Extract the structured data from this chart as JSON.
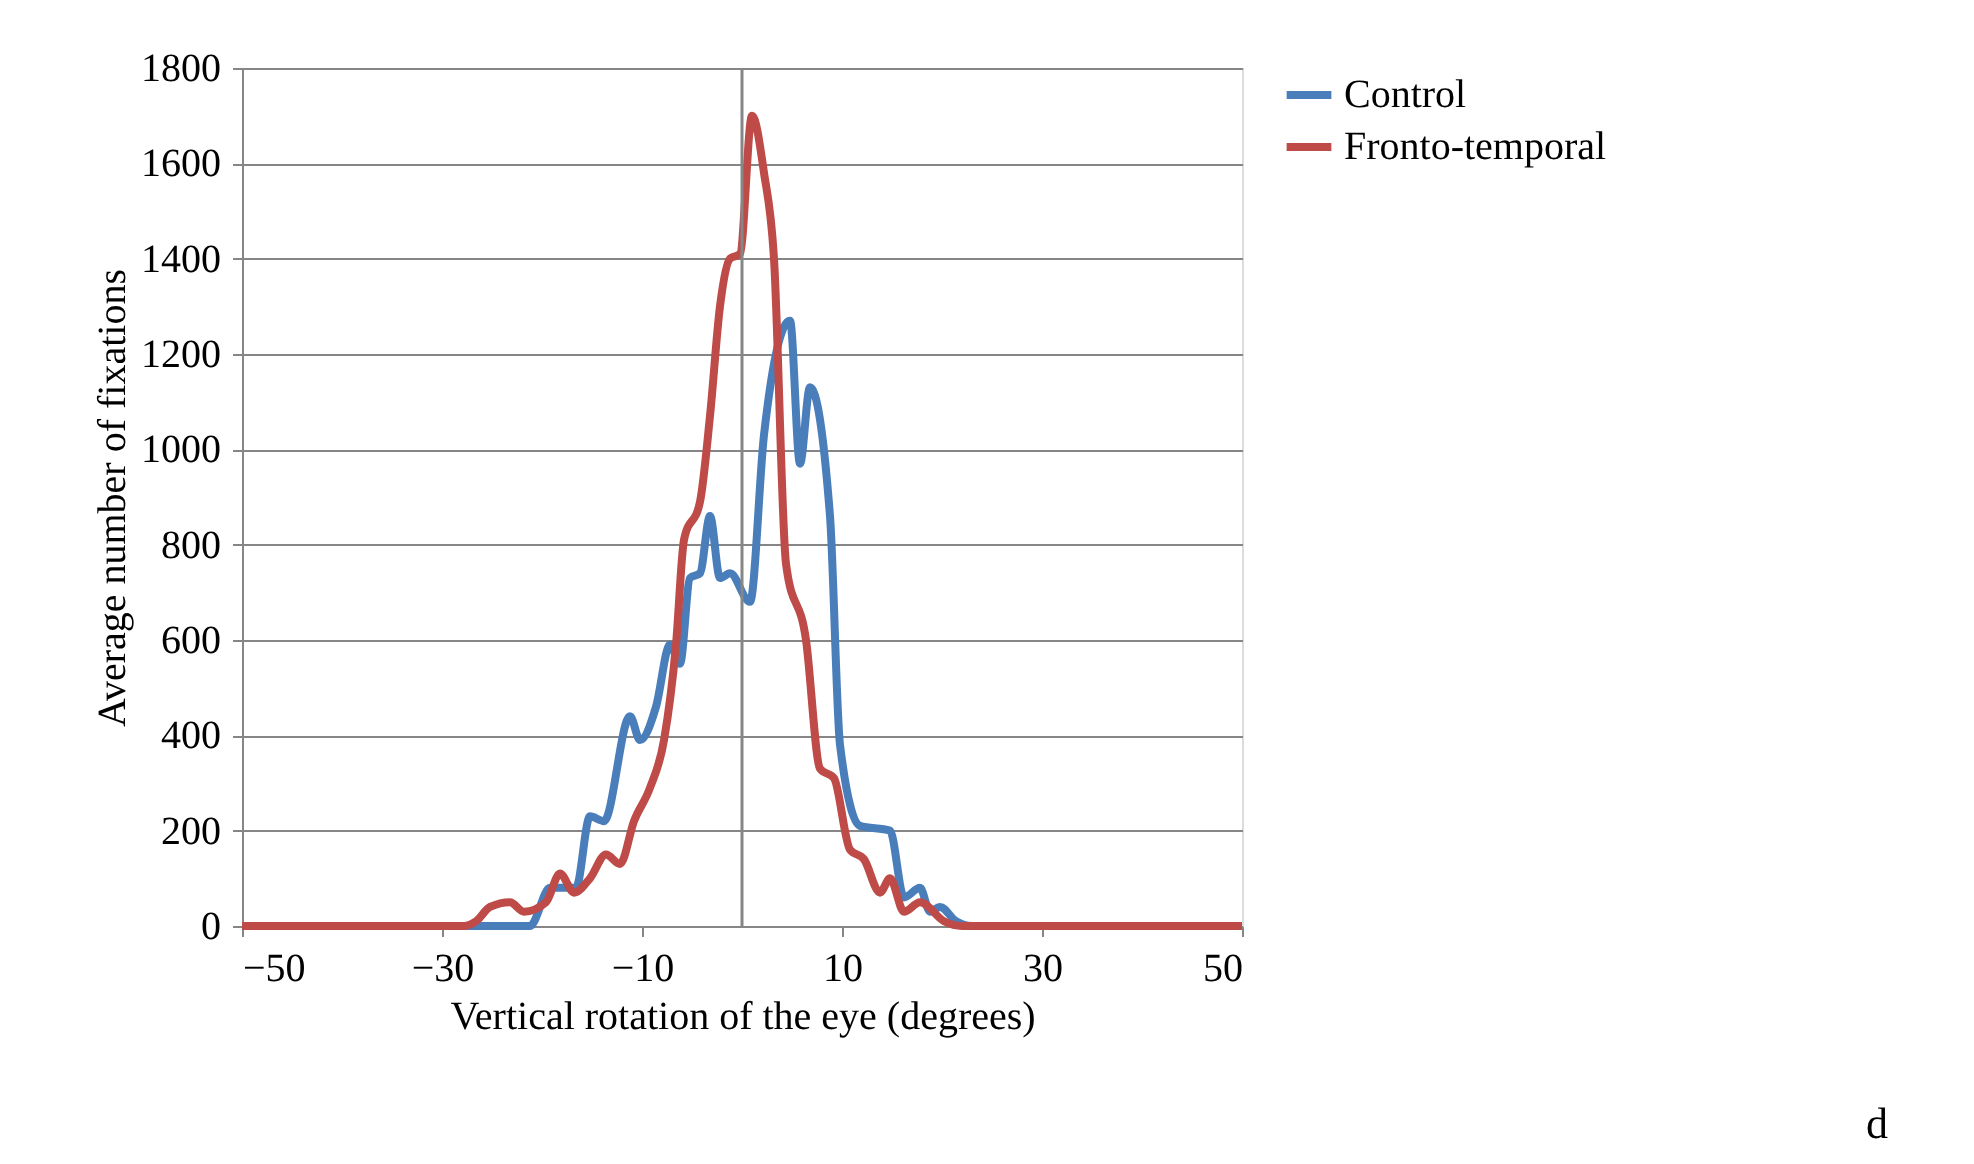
{
  "chart_data": {
    "type": "line",
    "xlabel": "Vertical rotation of the eye (degrees)",
    "ylabel": "Average number of fixations",
    "xlim": [
      -50,
      50
    ],
    "xticks": [
      -50,
      -30,
      -10,
      10,
      30,
      50
    ],
    "ylim": [
      0,
      1800
    ],
    "yticks": [
      0,
      200,
      400,
      600,
      800,
      {
        "value": 1000,
        "label": "1000"
      },
      {
        "value": 1200,
        "label": "1200"
      },
      {
        "value": 1400,
        "label": "1400"
      },
      {
        "value": 1600,
        "label": "1600"
      },
      {
        "value": 1800,
        "label": "1800"
      }
    ],
    "grid": "y",
    "legend": "right",
    "marker": "none",
    "line_style": "solid",
    "ref_lines": [
      {
        "axis": "x",
        "value": 0,
        "color": "#868686"
      }
    ],
    "annotations": [
      "d"
    ],
    "series": [
      {
        "name": "Control",
        "color": "#4a7ebb",
        "x": [
          -50,
          -40,
          -30,
          -25,
          -21.2,
          -19.2,
          -16.6,
          -15.2,
          -13.8,
          -11.2,
          -10.2,
          -8.6,
          -7.2,
          -6.2,
          -5.2,
          -4.2,
          -3.2,
          -2.2,
          -1.2,
          0.8,
          2.2,
          4.8,
          5.8,
          6.8,
          8.8,
          9.8,
          11.8,
          14.8,
          16.2,
          17.8,
          18.8,
          19.8,
          21.4,
          23,
          30
        ],
        "values": [
          0,
          0,
          0,
          0,
          0,
          80,
          80,
          230,
          220,
          440,
          390,
          460,
          590,
          550,
          730,
          740,
          860,
          730,
          740,
          680,
          1030,
          1270,
          970,
          1130,
          860,
          380,
          210,
          200,
          60,
          80,
          30,
          40,
          10,
          0,
          0
        ]
      },
      {
        "name": "Fronto-temporal",
        "color": "#be4b48",
        "x": [
          -50,
          -40,
          -30,
          -27.8,
          -26.6,
          -25.2,
          -23.2,
          -21.8,
          -19.6,
          -18.2,
          -16.8,
          -15.2,
          -13.6,
          -12.2,
          -10.8,
          -9.2,
          -7.8,
          -6.6,
          -5.8,
          -4.2,
          -3.2,
          -2.2,
          -1.2,
          -0.2,
          1.0,
          2.2,
          3.2,
          4.4,
          6.4,
          7.8,
          9.2,
          10.8,
          12.2,
          13.8,
          14.8,
          16.2,
          17.8,
          20.2,
          22,
          30,
          40,
          50
        ],
        "values": [
          0,
          0,
          0,
          0,
          10,
          40,
          50,
          30,
          50,
          110,
          70,
          100,
          150,
          130,
          220,
          290,
          390,
          590,
          810,
          890,
          1070,
          1300,
          1400,
          1410,
          1700,
          1580,
          1400,
          760,
          600,
          330,
          310,
          160,
          140,
          70,
          100,
          30,
          50,
          10,
          0,
          0,
          0,
          0
        ]
      }
    ]
  }
}
